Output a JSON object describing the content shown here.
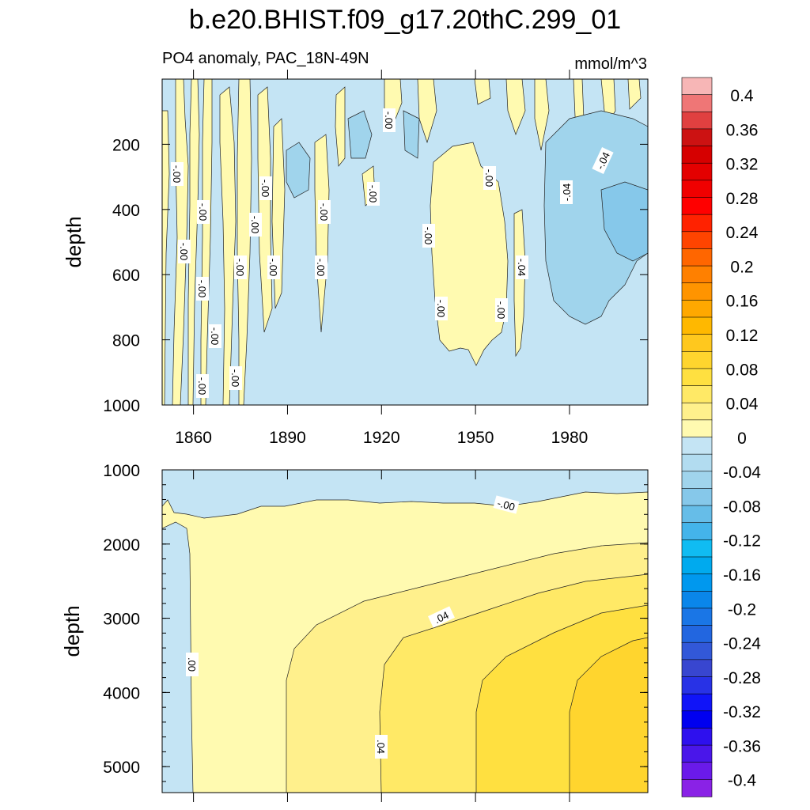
{
  "title": "b.e20.BHIST.f09_g17.20thC.299_01",
  "colorbar": {
    "labels": [
      "0.4",
      "0.36",
      "0.32",
      "0.28",
      "0.24",
      "0.2",
      "0.16",
      "0.12",
      "0.08",
      "0.04",
      "0",
      "-0.04",
      "-0.08",
      "-0.12",
      "-0.16",
      "-0.2",
      "-0.24",
      "-0.28",
      "-0.32",
      "-0.36",
      "-0.4"
    ],
    "colors": [
      "#f7b6b6",
      "#ef7676",
      "#e04040",
      "#cc1212",
      "#d60000",
      "#e40000",
      "#f00000",
      "#ff0000",
      "#ff2200",
      "#ff4400",
      "#ff6600",
      "#ff8000",
      "#ff9400",
      "#ffa800",
      "#ffb800",
      "#ffc81e",
      "#ffd52e",
      "#ffe040",
      "#ffe966",
      "#fff08c",
      "#fffab0",
      "#c4e4f4",
      "#b2dcf0",
      "#a0d4ec",
      "#86c8ea",
      "#66bde8",
      "#44b4ea",
      "#10bcf2",
      "#00aaee",
      "#0098ee",
      "#0a86ea",
      "#1a76e6",
      "#2266e0",
      "#3258d8",
      "#3846d0",
      "#2832e6",
      "#1014f8",
      "#0000f0",
      "#2e10ee",
      "#4a16ea",
      "#6a1aea",
      "#8a22e6"
    ]
  },
  "chart_data": [
    {
      "type": "heatmap",
      "panel": "upper",
      "left_label": "PO4 anomaly, PAC_18N-49N",
      "right_label": "mmol/m^3",
      "ylabel": "depth",
      "y_ticks": [
        "200",
        "400",
        "600",
        "800",
        "1000"
      ],
      "x_ticks": [
        "1860",
        "1890",
        "1920",
        "1950",
        "1980"
      ],
      "ylim": [
        0,
        1000
      ],
      "xlim": [
        1850,
        2005
      ],
      "contour_labels": [
        "-.00",
        "-.00",
        "-.00",
        "-.00",
        "-.00",
        "-.00",
        "-.00",
        "-.00",
        "-.00",
        "-.00",
        "-.00",
        "-.00",
        "-.00",
        "-.00",
        "-.00",
        "-.00",
        "-.00",
        "-.00",
        "-.00",
        "-.04",
        "-.04",
        "-.04"
      ],
      "fill_levels": [
        -0.04,
        0,
        0.04
      ],
      "max_abs_anomaly": 0.06
    },
    {
      "type": "heatmap",
      "panel": "lower",
      "ylabel": "depth",
      "y_ticks": [
        "1000",
        "2000",
        "3000",
        "4000",
        "5000"
      ],
      "ylim": [
        1000,
        5350
      ],
      "xlim": [
        1850,
        2005
      ],
      "contour_labels": [
        ".00",
        ".04",
        "-.00",
        ".04"
      ],
      "fill_levels": [
        0,
        0.04,
        0.08
      ],
      "max_abs_anomaly": 0.1
    }
  ]
}
